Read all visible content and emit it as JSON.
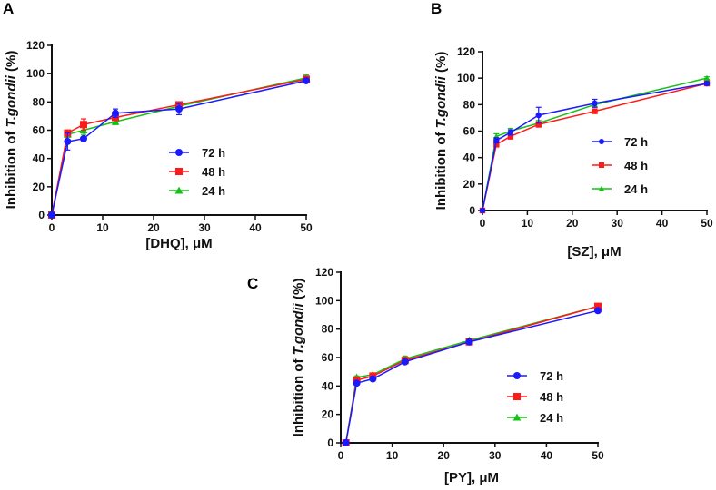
{
  "chart_data": [
    {
      "panel": "A",
      "type": "line",
      "ylabel_prefix": "Inhibition of ",
      "ylabel_italic": "T.gondii",
      "ylabel_suffix": " (%)",
      "xlabel": "[DHQ], μM",
      "xlim": [
        0,
        50
      ],
      "xticks": [
        0,
        10,
        20,
        30,
        40,
        50
      ],
      "ylim": [
        0,
        120
      ],
      "yticks": [
        0,
        20,
        40,
        60,
        80,
        100,
        120
      ],
      "legend": "center-right",
      "series": [
        {
          "name": "72 h",
          "color": "#1a1aff",
          "marker": "circle",
          "x": [
            0,
            3.1,
            6.25,
            12.5,
            25,
            50
          ],
          "y": [
            0,
            52,
            54,
            72,
            75,
            95
          ],
          "err": [
            0,
            6,
            1,
            3,
            4,
            1
          ]
        },
        {
          "name": "48 h",
          "color": "#ff1a1a",
          "marker": "square",
          "x": [
            0,
            3.1,
            6.25,
            12.5,
            25,
            50
          ],
          "y": [
            0,
            58,
            64,
            69,
            78,
            96
          ],
          "err": [
            0,
            2,
            4,
            2,
            2,
            1
          ]
        },
        {
          "name": "24 h",
          "color": "#16c116",
          "marker": "triangle",
          "x": [
            0,
            3.1,
            6.25,
            12.5,
            25,
            50
          ],
          "y": [
            0,
            57,
            60,
            66,
            77,
            97
          ],
          "err": [
            0,
            2,
            3,
            2,
            2,
            2
          ]
        }
      ]
    },
    {
      "panel": "B",
      "type": "line",
      "ylabel_prefix": "Inhibition of ",
      "ylabel_italic": "T.gondii",
      "ylabel_suffix": " (%)",
      "xlabel": "[SZ], μM",
      "xlim": [
        0,
        50
      ],
      "xticks": [
        0,
        10,
        20,
        30,
        40,
        50
      ],
      "ylim": [
        0,
        120
      ],
      "yticks": [
        0,
        20,
        40,
        60,
        80,
        100,
        120
      ],
      "legend": "center-right",
      "series": [
        {
          "name": "72 h",
          "color": "#1a1aff",
          "marker": "circle",
          "x": [
            0,
            3.1,
            6.25,
            12.5,
            25,
            50
          ],
          "y": [
            0,
            53,
            59,
            72,
            81,
            96
          ],
          "err": [
            0,
            2,
            2,
            6,
            3,
            1
          ]
        },
        {
          "name": "48 h",
          "color": "#ff1a1a",
          "marker": "square",
          "x": [
            0,
            3.1,
            6.25,
            12.5,
            25,
            50
          ],
          "y": [
            0,
            50,
            56,
            65,
            75,
            96
          ],
          "err": [
            0,
            2,
            2,
            2,
            1,
            1
          ]
        },
        {
          "name": "24 h",
          "color": "#16c116",
          "marker": "triangle",
          "x": [
            0,
            3.1,
            6.25,
            12.5,
            25,
            50
          ],
          "y": [
            0,
            56,
            60,
            66,
            80,
            100
          ],
          "err": [
            0,
            2,
            2,
            2,
            2,
            1
          ]
        }
      ]
    },
    {
      "panel": "C",
      "type": "line",
      "ylabel_prefix": "Inhibition of ",
      "ylabel_italic": "T.gondii",
      "ylabel_suffix": " (%)",
      "xlabel": "[PY], μM",
      "xlim": [
        0,
        50
      ],
      "xticks": [
        0,
        10,
        20,
        30,
        40,
        50
      ],
      "ylim": [
        0,
        120
      ],
      "yticks": [
        0,
        20,
        40,
        60,
        80,
        100,
        120
      ],
      "legend": "center-right",
      "series": [
        {
          "name": "72 h",
          "color": "#1a1aff",
          "marker": "circle",
          "x": [
            1,
            3.1,
            6.25,
            12.5,
            25,
            50
          ],
          "y": [
            0,
            42,
            45,
            57,
            71,
            93
          ],
          "err": [
            0,
            1,
            1,
            1,
            1,
            1
          ]
        },
        {
          "name": "48 h",
          "color": "#ff1a1a",
          "marker": "square",
          "x": [
            1,
            3.1,
            6.25,
            12.5,
            25,
            50
          ],
          "y": [
            0,
            44,
            47,
            58,
            71,
            96
          ],
          "err": [
            0,
            1,
            1,
            1,
            1,
            1
          ]
        },
        {
          "name": "24 h",
          "color": "#16c116",
          "marker": "triangle",
          "x": [
            1,
            3.1,
            6.25,
            12.5,
            25,
            50
          ],
          "y": [
            0,
            46,
            48,
            59,
            72,
            96
          ],
          "err": [
            0,
            1,
            1,
            2,
            1,
            1
          ]
        }
      ]
    }
  ]
}
